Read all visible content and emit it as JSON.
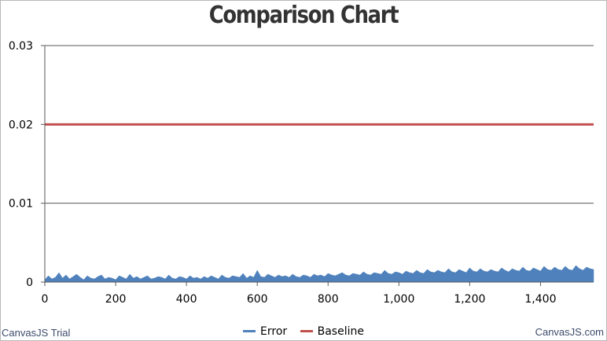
{
  "chart_data": {
    "type": "area",
    "title": "Comparison Chart",
    "xlabel": "",
    "ylabel": "",
    "xlim": [
      0,
      1550
    ],
    "ylim": [
      0,
      0.03
    ],
    "x_ticks": [
      "0",
      "200",
      "400",
      "600",
      "800",
      "1,000",
      "1,200",
      "1,400"
    ],
    "x_tick_values": [
      0,
      200,
      400,
      600,
      800,
      1000,
      1200,
      1400
    ],
    "y_ticks": [
      "0",
      "0.01",
      "0.02",
      "0.03"
    ],
    "y_tick_values": [
      0,
      0.01,
      0.02,
      0.03
    ],
    "grid": "horizontal",
    "legend_position": "bottom-center",
    "series": [
      {
        "name": "Error",
        "type": "area",
        "color": "#4f81bc",
        "x_start": 0,
        "x_step": 10,
        "values": [
          0.0003,
          0.0008,
          0.0004,
          0.0006,
          0.0012,
          0.0005,
          0.0009,
          0.0004,
          0.0007,
          0.001,
          0.0006,
          0.0003,
          0.0008,
          0.0005,
          0.0004,
          0.0007,
          0.0009,
          0.0004,
          0.0006,
          0.0005,
          0.0003,
          0.0008,
          0.0006,
          0.0004,
          0.001,
          0.0005,
          0.0007,
          0.0004,
          0.0006,
          0.0008,
          0.0004,
          0.0005,
          0.0007,
          0.0006,
          0.0004,
          0.0009,
          0.0005,
          0.0004,
          0.0007,
          0.0006,
          0.0004,
          0.0008,
          0.0005,
          0.0006,
          0.0004,
          0.0007,
          0.0005,
          0.0008,
          0.0006,
          0.0004,
          0.0009,
          0.0006,
          0.0005,
          0.0008,
          0.0007,
          0.0006,
          0.0011,
          0.0005,
          0.0008,
          0.0006,
          0.0015,
          0.0007,
          0.0006,
          0.001,
          0.0008,
          0.0006,
          0.0009,
          0.0007,
          0.0008,
          0.0006,
          0.001,
          0.0007,
          0.0006,
          0.0009,
          0.0008,
          0.0006,
          0.001,
          0.0008,
          0.0009,
          0.0007,
          0.0011,
          0.0009,
          0.0008,
          0.001,
          0.0012,
          0.0009,
          0.0008,
          0.0011,
          0.001,
          0.0009,
          0.0013,
          0.001,
          0.0009,
          0.0012,
          0.0011,
          0.001,
          0.0015,
          0.0011,
          0.001,
          0.0013,
          0.0012,
          0.001,
          0.0014,
          0.0012,
          0.0011,
          0.0015,
          0.0012,
          0.0011,
          0.0016,
          0.0013,
          0.0012,
          0.0015,
          0.0013,
          0.0012,
          0.0017,
          0.0013,
          0.0012,
          0.0016,
          0.0014,
          0.0012,
          0.0018,
          0.0014,
          0.0013,
          0.0017,
          0.0014,
          0.0013,
          0.0016,
          0.0014,
          0.0013,
          0.0018,
          0.0015,
          0.0013,
          0.0017,
          0.0015,
          0.0014,
          0.0019,
          0.0015,
          0.0014,
          0.0018,
          0.0016,
          0.0014,
          0.002,
          0.0016,
          0.0015,
          0.0019,
          0.0016,
          0.0015,
          0.002,
          0.0016,
          0.0015,
          0.0021,
          0.0017,
          0.0015,
          0.0019,
          0.0017,
          0.0016
        ]
      },
      {
        "name": "Baseline",
        "type": "line",
        "color": "#c0504e",
        "x": [
          0,
          1550
        ],
        "values": [
          0.02,
          0.02
        ]
      }
    ]
  },
  "credits": {
    "left": "CanvasJS Trial",
    "right": "CanvasJS.com"
  }
}
